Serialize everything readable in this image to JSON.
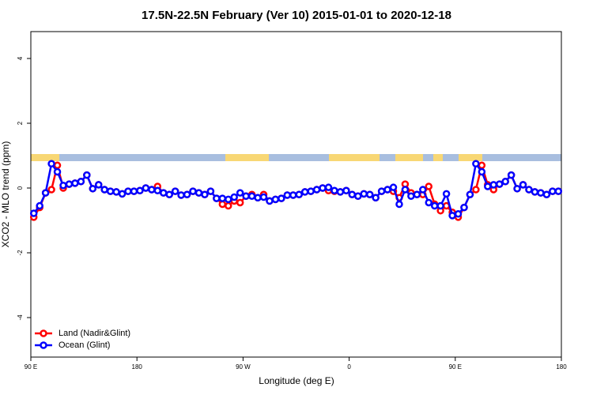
{
  "chart_data": {
    "type": "line",
    "title": "17.5N-22.5N February (Ver 10)   2015-01-01 to 2020-12-18",
    "x_label": "Longitude (deg E)",
    "y_label": "XCO2 - MLO trend (ppm)",
    "x": [
      92.5,
      97.5,
      102.5,
      107.5,
      112.5,
      117.5,
      122.5,
      127.5,
      132.5,
      137.5,
      142.5,
      147.5,
      152.5,
      157.5,
      162.5,
      167.5,
      172.5,
      177.5,
      182.5,
      187.5,
      192.5,
      197.5,
      202.5,
      207.5,
      212.5,
      217.5,
      222.5,
      227.5,
      232.5,
      237.5,
      242.5,
      247.5,
      252.5,
      257.5,
      262.5,
      267.5,
      272.5,
      277.5,
      282.5,
      287.5,
      292.5,
      297.5,
      302.5,
      307.5,
      312.5,
      317.5,
      322.5,
      327.5,
      332.5,
      337.5,
      342.5,
      347.5,
      352.5,
      357.5,
      362.5,
      367.5,
      372.5,
      377.5,
      382.5,
      387.5,
      392.5,
      397.5,
      402.5,
      407.5,
      412.5,
      417.5,
      422.5,
      427.5,
      432.5,
      437.5,
      442.5,
      447.5,
      452.5,
      457.5,
      462.5,
      467.5,
      472.5,
      477.5,
      482.5,
      487.5,
      492.5,
      497.5,
      502.5,
      507.5,
      512.5,
      517.5,
      522.5,
      527.5,
      532.5,
      537.5
    ],
    "series": [
      {
        "name": "Land (Nadir&Glint)",
        "color": "#ff0000",
        "values": [
          -0.9,
          -0.6,
          -0.15,
          -0.05,
          0.7,
          0.0,
          0.12,
          0.15,
          0.2,
          0.4,
          -0.02,
          0.1,
          -0.05,
          -0.1,
          -0.12,
          -0.18,
          -0.1,
          -0.1,
          -0.08,
          0.0,
          -0.05,
          0.05,
          -0.15,
          -0.2,
          -0.1,
          -0.22,
          -0.2,
          -0.1,
          -0.15,
          -0.2,
          -0.1,
          -0.32,
          -0.5,
          -0.55,
          -0.4,
          -0.45,
          -0.25,
          -0.2,
          -0.3,
          -0.2,
          -0.4,
          -0.35,
          -0.32,
          -0.22,
          -0.22,
          -0.2,
          -0.12,
          -0.1,
          -0.05,
          0.0,
          -0.08,
          -0.1,
          -0.12,
          -0.08,
          -0.2,
          -0.25,
          -0.18,
          -0.2,
          -0.3,
          -0.1,
          -0.05,
          -0.1,
          -0.3,
          0.12,
          -0.15,
          -0.2,
          -0.2,
          0.05,
          -0.5,
          -0.7,
          -0.55,
          -0.75,
          -0.9,
          -0.6,
          -0.2,
          -0.05,
          0.7,
          0.1,
          -0.05,
          0.12,
          0.2,
          0.4,
          -0.02,
          0.1,
          -0.05,
          -0.12,
          -0.15,
          -0.2,
          -0.1,
          -0.1
        ]
      },
      {
        "name": "Ocean (Glint)",
        "color": "#0000ff",
        "values": [
          -0.78,
          -0.55,
          -0.15,
          0.75,
          0.5,
          0.08,
          0.12,
          0.15,
          0.2,
          0.4,
          -0.02,
          0.1,
          -0.05,
          -0.1,
          -0.12,
          -0.18,
          -0.1,
          -0.1,
          -0.08,
          0.0,
          -0.05,
          -0.08,
          -0.15,
          -0.2,
          -0.1,
          -0.22,
          -0.2,
          -0.1,
          -0.15,
          -0.2,
          -0.1,
          -0.32,
          -0.32,
          -0.35,
          -0.28,
          -0.15,
          -0.25,
          -0.25,
          -0.3,
          -0.28,
          -0.4,
          -0.35,
          -0.32,
          -0.22,
          -0.22,
          -0.2,
          -0.12,
          -0.1,
          -0.05,
          0.0,
          0.02,
          -0.08,
          -0.12,
          -0.08,
          -0.2,
          -0.25,
          -0.18,
          -0.2,
          -0.3,
          -0.1,
          -0.05,
          0.02,
          -0.5,
          -0.05,
          -0.25,
          -0.2,
          -0.05,
          -0.45,
          -0.55,
          -0.55,
          -0.18,
          -0.85,
          -0.8,
          -0.6,
          -0.2,
          0.75,
          0.5,
          0.05,
          0.1,
          0.12,
          0.2,
          0.4,
          -0.02,
          0.1,
          -0.05,
          -0.12,
          -0.15,
          -0.2,
          -0.1,
          -0.1
        ]
      }
    ],
    "xlim": [
      90,
      540
    ],
    "xticks": [
      {
        "value": 90,
        "label": "90 E"
      },
      180,
      {
        "value": 270,
        "label": "90 W"
      },
      {
        "value": 360,
        "label": "0"
      },
      {
        "value": 450,
        "label": "90 E"
      },
      {
        "value": 540,
        "label": "180"
      }
    ],
    "ylim": [
      -5.22,
      4.83
    ],
    "yticks": [
      -4,
      -2,
      0,
      2,
      4
    ],
    "legend": "bottom-left"
  }
}
